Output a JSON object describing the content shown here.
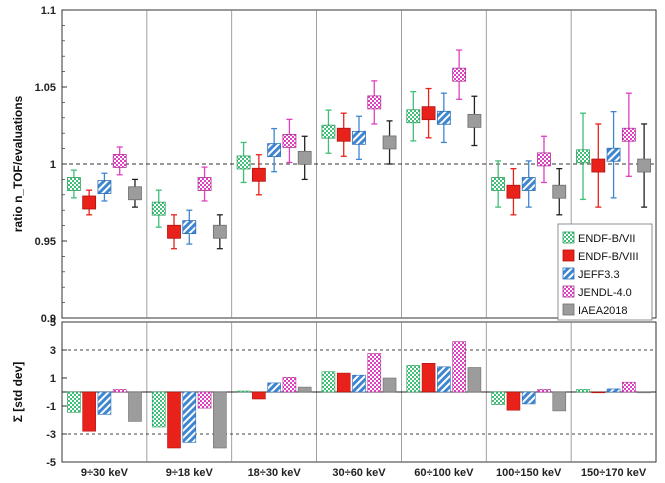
{
  "chart_data": [
    {
      "type": "scatter",
      "ylabel": "ratio n_TOF/evaluations",
      "ylim": [
        0.9,
        1.1
      ],
      "yticks": [
        "0.9",
        "0.95",
        "1",
        "1.05",
        "1.1"
      ],
      "reference_line": 1,
      "categories": [
        "9÷30 keV",
        "9÷18 keV",
        "18÷30 keV",
        "30÷60 keV",
        "60÷100 keV",
        "100÷150 keV",
        "150÷170 keV"
      ],
      "legend_position": "right",
      "series": [
        {
          "name": "ENDF-B/VII",
          "values": [
            0.987,
            0.971,
            1.001,
            1.021,
            1.031,
            0.987,
            1.005
          ],
          "err": [
            0.009,
            0.012,
            0.013,
            0.014,
            0.016,
            0.015,
            0.028
          ]
        },
        {
          "name": "ENDF-B/VIII",
          "values": [
            0.975,
            0.956,
            0.993,
            1.019,
            1.033,
            0.982,
            0.999
          ],
          "err": [
            0.008,
            0.011,
            0.013,
            0.014,
            0.016,
            0.015,
            0.027
          ]
        },
        {
          "name": "JEFF3.3",
          "values": [
            0.985,
            0.959,
            1.009,
            1.017,
            1.03,
            0.987,
            1.006
          ],
          "err": [
            0.009,
            0.011,
            0.014,
            0.014,
            0.016,
            0.015,
            0.028
          ]
        },
        {
          "name": "JENDL-4.0",
          "values": [
            1.002,
            0.987,
            1.015,
            1.04,
            1.058,
            1.003,
            1.019
          ],
          "err": [
            0.009,
            0.011,
            0.014,
            0.014,
            0.016,
            0.015,
            0.027
          ]
        },
        {
          "name": "IAEA2018",
          "values": [
            0.981,
            0.956,
            1.004,
            1.014,
            1.028,
            0.982,
            0.999
          ],
          "err": [
            0.009,
            0.011,
            0.014,
            0.014,
            0.016,
            0.015,
            0.027
          ]
        }
      ]
    },
    {
      "type": "bar",
      "ylabel": "Σ [std dev]",
      "ylim": [
        -5,
        5
      ],
      "yticks": [
        "-5",
        "-3",
        "-1",
        "1",
        "3",
        "5"
      ],
      "reference_lines": [
        3,
        -3
      ],
      "categories": [
        "9÷30 keV",
        "9÷18 keV",
        "18÷30 keV",
        "30÷60 keV",
        "60÷100 keV",
        "100÷150 keV",
        "150÷170 keV"
      ],
      "series": [
        {
          "name": "ENDF-B/VII",
          "values": [
            -1.45,
            -2.5,
            0.07,
            1.45,
            1.9,
            -0.9,
            0.18
          ]
        },
        {
          "name": "ENDF-B/VIII",
          "values": [
            -2.8,
            -4.0,
            -0.5,
            1.35,
            2.05,
            -1.3,
            -0.05
          ]
        },
        {
          "name": "JEFF3.3",
          "values": [
            -1.6,
            -3.6,
            0.65,
            1.2,
            1.8,
            -0.85,
            0.22
          ]
        },
        {
          "name": "JENDL-4.0",
          "values": [
            0.18,
            -1.15,
            1.05,
            2.75,
            3.6,
            0.18,
            0.7
          ]
        },
        {
          "name": "IAEA2018",
          "values": [
            -2.1,
            -4.0,
            0.35,
            1.0,
            1.75,
            -1.35,
            -0.03
          ]
        }
      ]
    }
  ],
  "colors": {
    "ENDF-B/VII": "#3fbf78",
    "ENDF-B/VIII": "#e8211b",
    "JEFF3.3": "#3f86d0",
    "JENDL-4.0": "#e040c0",
    "IAEA2018": "#9c9c9c"
  }
}
